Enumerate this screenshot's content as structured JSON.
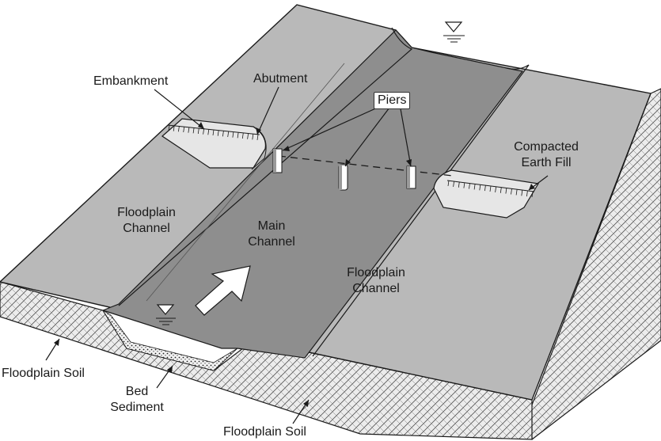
{
  "labels": {
    "embankment": "Embankment",
    "abutment": "Abutment",
    "piers": "Piers",
    "compacted_line1": "Compacted",
    "compacted_line2": "Earth Fill",
    "floodplain_left_line1": "Floodplain",
    "floodplain_left_line2": "Channel",
    "main_line1": "Main",
    "main_line2": "Channel",
    "floodplain_right_line1": "Floodplain",
    "floodplain_right_line2": "Channel",
    "floodplain_soil_left": "Floodplain Soil",
    "bed_line1": "Bed",
    "bed_line2": "Sediment",
    "floodplain_soil_bottom": "Floodplain Soil"
  },
  "colors": {
    "floodplain_surface": "#b9b9b9",
    "main_channel": "#8f8f8f",
    "soil_front": "#e9e9e9",
    "outline": "#1a1a1a",
    "flow_arrow": "#ffffff"
  },
  "icons": {
    "water_surface": "inverted-triangle-icon",
    "flow_direction": "flow-arrow-icon"
  }
}
